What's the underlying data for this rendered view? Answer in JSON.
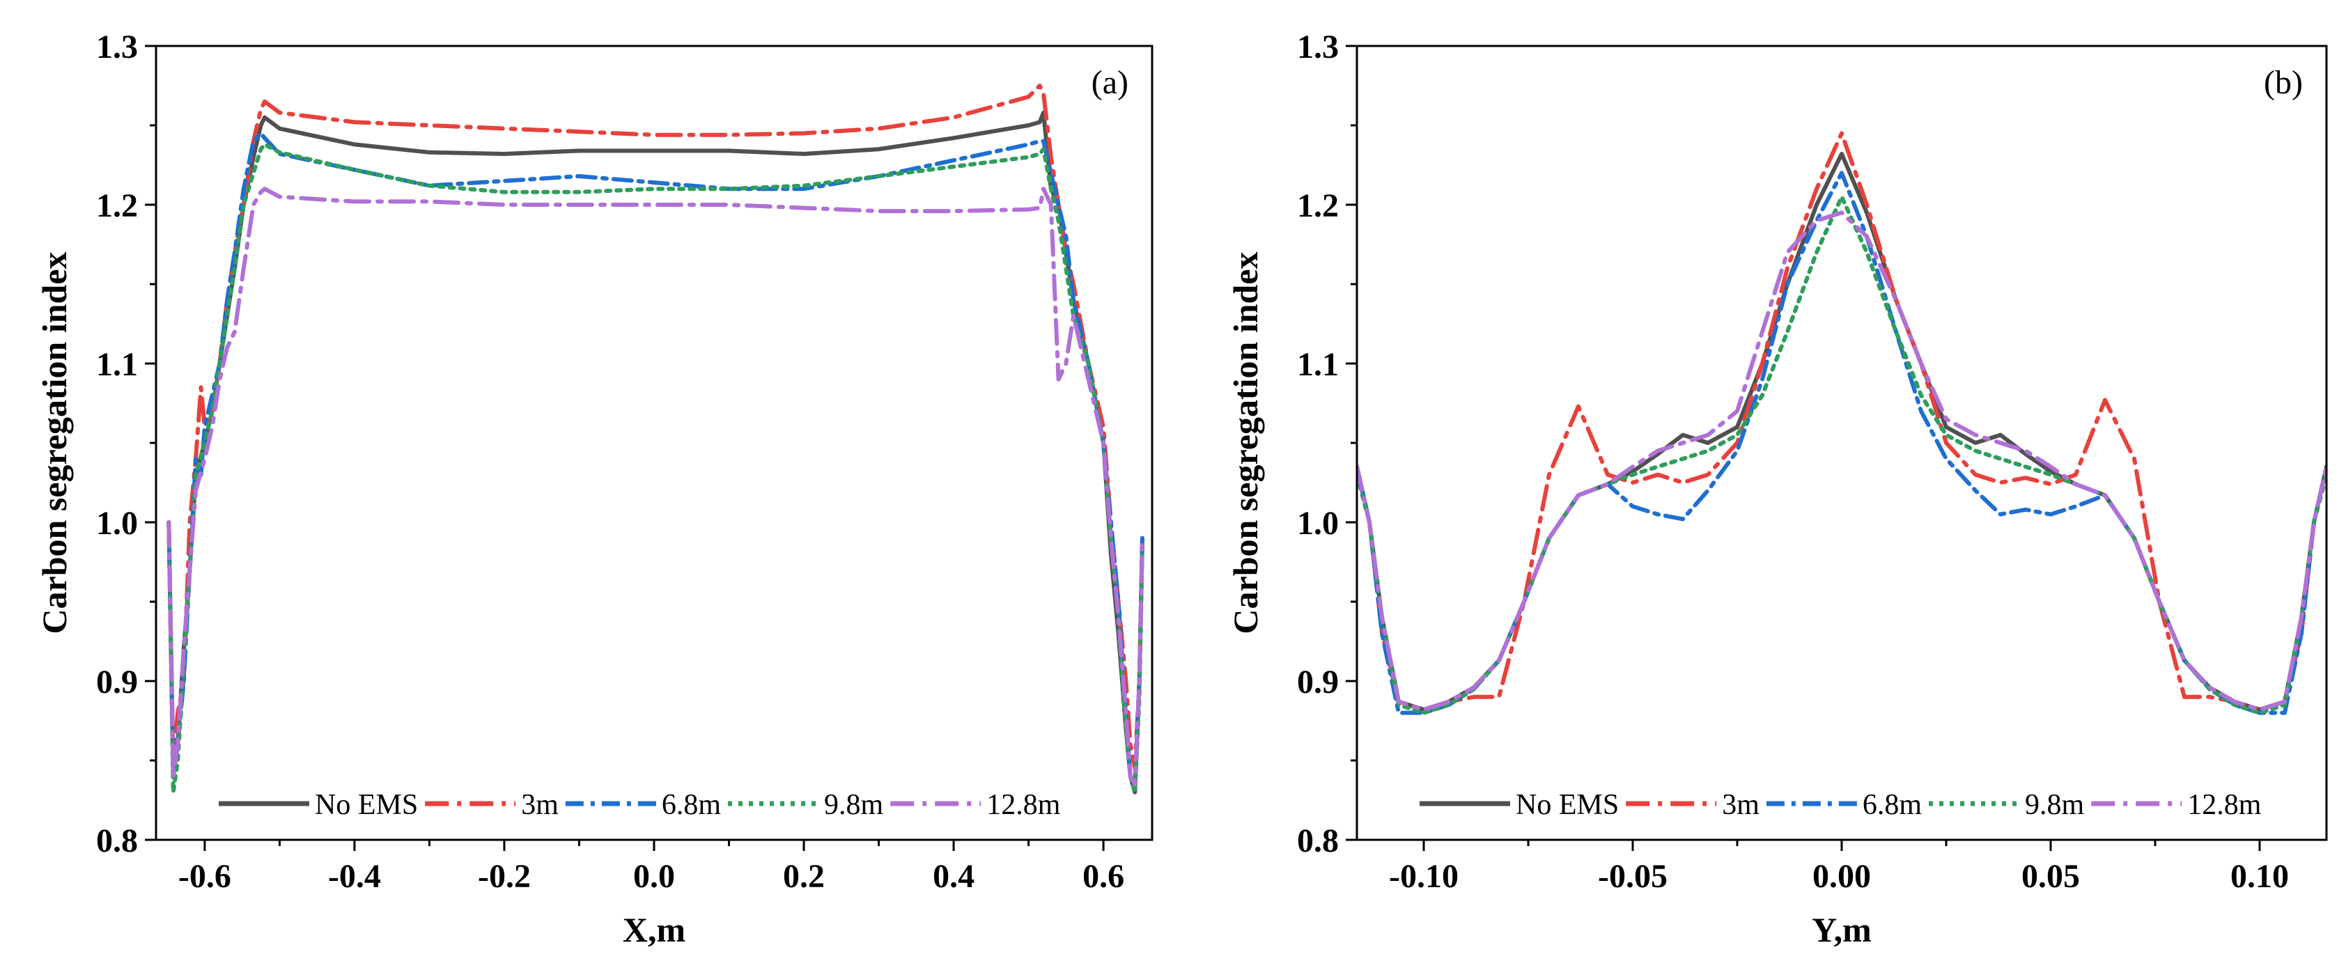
{
  "chart_data": [
    {
      "type": "line",
      "panel_label": "(a)",
      "xlabel": "X,m",
      "ylabel": "Carbon segregation index",
      "xlim": [
        -0.665,
        0.665
      ],
      "ylim": [
        0.8,
        1.3
      ],
      "xticks": [
        -0.6,
        -0.4,
        -0.2,
        0.0,
        0.2,
        0.4,
        0.6
      ],
      "xtick_labels": [
        "-0.6",
        "-0.4",
        "-0.2",
        "0.0",
        "0.2",
        "0.4",
        "0.6"
      ],
      "yticks": [
        0.8,
        0.9,
        1.0,
        1.1,
        1.2,
        1.3
      ],
      "ytick_labels": [
        "0.8",
        "0.9",
        "1.0",
        "1.1",
        "1.2",
        "1.3"
      ],
      "legend_position": "bottom",
      "series": [
        {
          "name": "No EMS",
          "color": "#505050",
          "dash": "solid",
          "x": [
            -0.648,
            -0.642,
            -0.636,
            -0.628,
            -0.62,
            -0.612,
            -0.6,
            -0.59,
            -0.58,
            -0.57,
            -0.56,
            -0.548,
            -0.535,
            -0.525,
            -0.52,
            -0.5,
            -0.4,
            -0.3,
            -0.2,
            -0.1,
            0.0,
            0.1,
            0.2,
            0.3,
            0.4,
            0.5,
            0.515,
            0.52,
            0.53,
            0.54,
            0.55,
            0.56,
            0.58,
            0.6,
            0.61,
            0.62,
            0.63,
            0.636,
            0.642,
            0.648,
            0.652
          ],
          "y": [
            1.0,
            0.84,
            0.86,
            0.92,
            0.97,
            1.03,
            1.05,
            1.07,
            1.1,
            1.13,
            1.16,
            1.2,
            1.23,
            1.25,
            1.255,
            1.248,
            1.238,
            1.233,
            1.232,
            1.234,
            1.234,
            1.234,
            1.232,
            1.235,
            1.242,
            1.25,
            1.252,
            1.258,
            1.21,
            1.2,
            1.17,
            1.14,
            1.1,
            1.05,
            0.98,
            0.93,
            0.87,
            0.84,
            0.83,
            0.9,
            0.99
          ]
        },
        {
          "name": "3m",
          "color": "#e8413c",
          "dash": "dashdot",
          "x": [
            -0.648,
            -0.642,
            -0.636,
            -0.628,
            -0.62,
            -0.612,
            -0.605,
            -0.6,
            -0.59,
            -0.58,
            -0.57,
            -0.56,
            -0.548,
            -0.535,
            -0.525,
            -0.52,
            -0.5,
            -0.4,
            -0.3,
            -0.2,
            -0.1,
            0.0,
            0.1,
            0.2,
            0.3,
            0.4,
            0.5,
            0.515,
            0.52,
            0.53,
            0.54,
            0.55,
            0.56,
            0.58,
            0.6,
            0.61,
            0.62,
            0.63,
            0.636,
            0.642,
            0.648,
            0.652
          ],
          "y": [
            1.0,
            0.85,
            0.88,
            0.9,
            1.0,
            1.04,
            1.085,
            1.06,
            1.07,
            1.1,
            1.14,
            1.17,
            1.2,
            1.24,
            1.26,
            1.265,
            1.258,
            1.252,
            1.25,
            1.248,
            1.246,
            1.244,
            1.244,
            1.245,
            1.248,
            1.255,
            1.268,
            1.275,
            1.27,
            1.23,
            1.2,
            1.17,
            1.15,
            1.1,
            1.06,
            1.0,
            0.95,
            0.9,
            0.86,
            0.845,
            0.9,
            0.99
          ]
        },
        {
          "name": "6.8m",
          "color": "#1f6fd1",
          "dash": "dashdot2",
          "x": [
            -0.648,
            -0.642,
            -0.636,
            -0.628,
            -0.62,
            -0.612,
            -0.605,
            -0.6,
            -0.59,
            -0.58,
            -0.57,
            -0.56,
            -0.548,
            -0.535,
            -0.525,
            -0.52,
            -0.5,
            -0.4,
            -0.3,
            -0.2,
            -0.1,
            0.0,
            0.1,
            0.2,
            0.3,
            0.4,
            0.5,
            0.515,
            0.52,
            0.53,
            0.54,
            0.55,
            0.56,
            0.58,
            0.6,
            0.61,
            0.62,
            0.63,
            0.636,
            0.642,
            0.648,
            0.652
          ],
          "y": [
            1.0,
            0.84,
            0.86,
            0.9,
            0.97,
            1.04,
            1.03,
            1.06,
            1.08,
            1.1,
            1.14,
            1.17,
            1.21,
            1.24,
            1.245,
            1.242,
            1.232,
            1.222,
            1.212,
            1.215,
            1.218,
            1.214,
            1.21,
            1.21,
            1.218,
            1.228,
            1.238,
            1.24,
            1.24,
            1.22,
            1.2,
            1.18,
            1.14,
            1.1,
            1.05,
            1.0,
            0.95,
            0.88,
            0.84,
            0.835,
            0.9,
            0.99
          ]
        },
        {
          "name": "9.8m",
          "color": "#2e9e5b",
          "dash": "dot",
          "x": [
            -0.648,
            -0.642,
            -0.636,
            -0.628,
            -0.62,
            -0.612,
            -0.6,
            -0.59,
            -0.58,
            -0.57,
            -0.56,
            -0.548,
            -0.535,
            -0.525,
            -0.52,
            -0.5,
            -0.4,
            -0.3,
            -0.2,
            -0.1,
            0.0,
            0.1,
            0.2,
            0.3,
            0.4,
            0.5,
            0.515,
            0.52,
            0.53,
            0.54,
            0.55,
            0.56,
            0.58,
            0.6,
            0.61,
            0.62,
            0.63,
            0.636,
            0.642,
            0.648,
            0.652
          ],
          "y": [
            1.0,
            0.83,
            0.85,
            0.91,
            0.97,
            1.03,
            1.05,
            1.07,
            1.1,
            1.13,
            1.16,
            1.2,
            1.22,
            1.235,
            1.238,
            1.233,
            1.222,
            1.212,
            1.208,
            1.208,
            1.21,
            1.21,
            1.212,
            1.218,
            1.224,
            1.23,
            1.232,
            1.235,
            1.21,
            1.19,
            1.16,
            1.13,
            1.1,
            1.05,
            0.99,
            0.94,
            0.87,
            0.84,
            0.83,
            0.89,
            0.985
          ]
        },
        {
          "name": "12.8m",
          "color": "#b071d6",
          "dash": "dashdot",
          "x": [
            -0.648,
            -0.642,
            -0.636,
            -0.628,
            -0.62,
            -0.612,
            -0.6,
            -0.59,
            -0.58,
            -0.57,
            -0.56,
            -0.548,
            -0.535,
            -0.525,
            -0.52,
            -0.5,
            -0.4,
            -0.3,
            -0.2,
            -0.1,
            0.0,
            0.1,
            0.2,
            0.3,
            0.4,
            0.5,
            0.515,
            0.52,
            0.53,
            0.54,
            0.55,
            0.56,
            0.58,
            0.6,
            0.61,
            0.62,
            0.63,
            0.636,
            0.642,
            0.648,
            0.652
          ],
          "y": [
            1.0,
            0.84,
            0.86,
            0.92,
            0.97,
            1.02,
            1.04,
            1.06,
            1.09,
            1.11,
            1.12,
            1.16,
            1.2,
            1.208,
            1.21,
            1.205,
            1.202,
            1.202,
            1.2,
            1.2,
            1.2,
            1.2,
            1.198,
            1.196,
            1.196,
            1.197,
            1.198,
            1.21,
            1.2,
            1.09,
            1.1,
            1.13,
            1.09,
            1.05,
            0.99,
            0.94,
            0.88,
            0.84,
            0.835,
            0.9,
            0.99
          ]
        }
      ]
    },
    {
      "type": "line",
      "panel_label": "(b)",
      "xlabel": "Y,m",
      "ylabel": "Carbon segregation index",
      "xlim": [
        -0.116,
        0.116
      ],
      "ylim": [
        0.8,
        1.3
      ],
      "xticks": [
        -0.1,
        -0.05,
        0.0,
        0.05,
        0.1
      ],
      "xtick_labels": [
        "-0.10",
        "-0.05",
        "0.00",
        "0.05",
        "0.10"
      ],
      "yticks": [
        0.8,
        0.9,
        1.0,
        1.1,
        1.2,
        1.3
      ],
      "ytick_labels": [
        "0.8",
        "0.9",
        "1.0",
        "1.1",
        "1.2",
        "1.3"
      ],
      "legend_position": "bottom",
      "series": [
        {
          "name": "No EMS",
          "color": "#505050",
          "dash": "solid",
          "x": [
            -0.116,
            -0.113,
            -0.11,
            -0.106,
            -0.1,
            -0.094,
            -0.088,
            -0.082,
            -0.076,
            -0.07,
            -0.063,
            -0.056,
            -0.05,
            -0.044,
            -0.038,
            -0.032,
            -0.025,
            -0.019,
            -0.013,
            -0.006,
            0.0,
            0.006,
            0.013,
            0.019,
            0.025,
            0.032,
            0.038,
            0.044,
            0.05,
            0.056,
            0.063,
            0.07,
            0.076,
            0.082,
            0.088,
            0.094,
            0.1,
            0.106,
            0.11,
            0.113,
            0.116
          ],
          "y": [
            1.035,
            1.0,
            0.94,
            0.887,
            0.882,
            0.887,
            0.896,
            0.913,
            0.95,
            0.99,
            1.017,
            1.024,
            1.032,
            1.043,
            1.055,
            1.05,
            1.06,
            1.1,
            1.15,
            1.2,
            1.232,
            1.195,
            1.14,
            1.1,
            1.06,
            1.05,
            1.055,
            1.043,
            1.032,
            1.024,
            1.017,
            0.99,
            0.95,
            0.913,
            0.896,
            0.887,
            0.882,
            0.887,
            0.94,
            1.0,
            1.035
          ]
        },
        {
          "name": "3m",
          "color": "#e8413c",
          "dash": "dashdot",
          "x": [
            -0.116,
            -0.113,
            -0.11,
            -0.106,
            -0.1,
            -0.094,
            -0.088,
            -0.082,
            -0.076,
            -0.07,
            -0.063,
            -0.056,
            -0.05,
            -0.044,
            -0.038,
            -0.032,
            -0.025,
            -0.019,
            -0.013,
            -0.006,
            0.0,
            0.006,
            0.013,
            0.019,
            0.025,
            0.032,
            0.038,
            0.044,
            0.05,
            0.056,
            0.063,
            0.07,
            0.076,
            0.082,
            0.088,
            0.094,
            0.1,
            0.106,
            0.11,
            0.113,
            0.116
          ],
          "y": [
            1.035,
            1.0,
            0.93,
            0.887,
            0.882,
            0.887,
            0.89,
            0.89,
            0.95,
            1.03,
            1.073,
            1.03,
            1.025,
            1.03,
            1.025,
            1.03,
            1.05,
            1.1,
            1.16,
            1.21,
            1.245,
            1.2,
            1.14,
            1.1,
            1.05,
            1.03,
            1.025,
            1.028,
            1.024,
            1.03,
            1.077,
            1.04,
            0.95,
            0.89,
            0.89,
            0.887,
            0.882,
            0.887,
            0.93,
            1.0,
            1.035
          ]
        },
        {
          "name": "6.8m",
          "color": "#1f6fd1",
          "dash": "dashdot2",
          "x": [
            -0.116,
            -0.113,
            -0.11,
            -0.106,
            -0.1,
            -0.094,
            -0.088,
            -0.082,
            -0.076,
            -0.07,
            -0.063,
            -0.056,
            -0.05,
            -0.044,
            -0.038,
            -0.032,
            -0.025,
            -0.019,
            -0.013,
            -0.006,
            0.0,
            0.006,
            0.013,
            0.019,
            0.025,
            0.032,
            0.038,
            0.044,
            0.05,
            0.056,
            0.063,
            0.07,
            0.076,
            0.082,
            0.088,
            0.094,
            0.1,
            0.106,
            0.11,
            0.113,
            0.116
          ],
          "y": [
            1.035,
            1.0,
            0.93,
            0.88,
            0.88,
            0.885,
            0.895,
            0.913,
            0.95,
            0.99,
            1.017,
            1.024,
            1.01,
            1.005,
            1.002,
            1.02,
            1.045,
            1.09,
            1.15,
            1.19,
            1.22,
            1.18,
            1.12,
            1.07,
            1.04,
            1.02,
            1.005,
            1.008,
            1.005,
            1.01,
            1.017,
            0.99,
            0.95,
            0.913,
            0.895,
            0.885,
            0.88,
            0.88,
            0.93,
            1.0,
            1.035
          ]
        },
        {
          "name": "9.8m",
          "color": "#2e9e5b",
          "dash": "dot",
          "x": [
            -0.116,
            -0.113,
            -0.11,
            -0.106,
            -0.1,
            -0.094,
            -0.088,
            -0.082,
            -0.076,
            -0.07,
            -0.063,
            -0.056,
            -0.05,
            -0.044,
            -0.038,
            -0.032,
            -0.025,
            -0.019,
            -0.013,
            -0.006,
            0.0,
            0.006,
            0.013,
            0.019,
            0.025,
            0.032,
            0.038,
            0.044,
            0.05,
            0.056,
            0.063,
            0.07,
            0.076,
            0.082,
            0.088,
            0.094,
            0.1,
            0.106,
            0.11,
            0.113,
            0.116
          ],
          "y": [
            1.03,
            1.0,
            0.94,
            0.885,
            0.88,
            0.885,
            0.895,
            0.913,
            0.95,
            0.99,
            1.017,
            1.024,
            1.03,
            1.035,
            1.04,
            1.045,
            1.055,
            1.08,
            1.12,
            1.17,
            1.205,
            1.17,
            1.12,
            1.08,
            1.055,
            1.045,
            1.04,
            1.035,
            1.03,
            1.024,
            1.017,
            0.99,
            0.95,
            0.913,
            0.895,
            0.885,
            0.88,
            0.885,
            0.94,
            1.0,
            1.03
          ]
        },
        {
          "name": "12.8m",
          "color": "#b071d6",
          "dash": "dashdot",
          "x": [
            -0.116,
            -0.113,
            -0.11,
            -0.106,
            -0.1,
            -0.094,
            -0.088,
            -0.082,
            -0.076,
            -0.07,
            -0.063,
            -0.056,
            -0.05,
            -0.044,
            -0.038,
            -0.032,
            -0.025,
            -0.019,
            -0.013,
            -0.006,
            0.0,
            0.006,
            0.013,
            0.019,
            0.025,
            0.032,
            0.038,
            0.044,
            0.05,
            0.056,
            0.063,
            0.07,
            0.076,
            0.082,
            0.088,
            0.094,
            0.1,
            0.106,
            0.11,
            0.113,
            0.116
          ],
          "y": [
            1.035,
            1.0,
            0.94,
            0.887,
            0.882,
            0.887,
            0.896,
            0.913,
            0.95,
            0.99,
            1.017,
            1.024,
            1.035,
            1.045,
            1.05,
            1.055,
            1.07,
            1.12,
            1.17,
            1.19,
            1.195,
            1.18,
            1.14,
            1.1,
            1.065,
            1.055,
            1.05,
            1.045,
            1.035,
            1.024,
            1.017,
            0.99,
            0.95,
            0.913,
            0.896,
            0.887,
            0.882,
            0.887,
            0.94,
            1.0,
            1.035
          ]
        }
      ]
    }
  ]
}
